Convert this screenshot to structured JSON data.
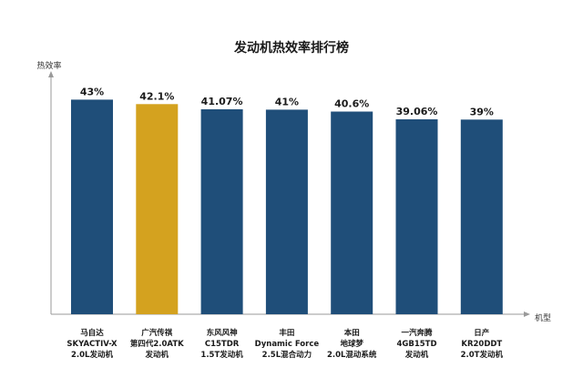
{
  "chart_data": {
    "type": "bar",
    "title": "发动机热效率排行榜",
    "ylabel": "热效率",
    "xlabel": "机型",
    "ylim": [
      0,
      48
    ],
    "grid": false,
    "categories": [
      [
        "马自达",
        "SKYACTIV-X",
        "2.0L发动机"
      ],
      [
        "广汽传祺",
        "第四代2.0ATK",
        "发动机"
      ],
      [
        "东风风神",
        "C15TDR",
        "1.5T发动机"
      ],
      [
        "丰田",
        "Dynamic Force",
        "2.5L混合动力"
      ],
      [
        "本田",
        "地球梦",
        "2.0L混动系统"
      ],
      [
        "一汽奔腾",
        "4GB15TD",
        "发动机"
      ],
      [
        "日产",
        "KR20DDT",
        "2.0T发动机"
      ]
    ],
    "values": [
      43,
      42.1,
      41.07,
      41,
      40.6,
      39.06,
      39
    ],
    "value_labels": [
      "43%",
      "42.1%",
      "41.07%",
      "41%",
      "40.6%",
      "39.06%",
      "39%"
    ],
    "highlight_index": 1,
    "colors": {
      "bar": "#1f4e79",
      "highlight": "#d4a21f",
      "axis": "#9a9a9a"
    }
  }
}
